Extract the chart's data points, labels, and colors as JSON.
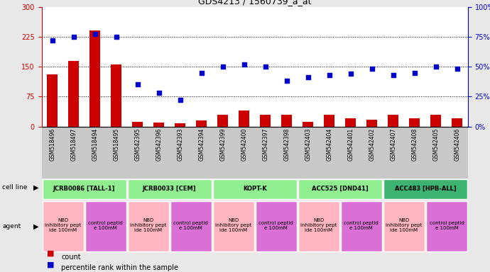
{
  "title": "GDS4213 / 1560739_a_at",
  "gsm_labels": [
    "GSM518496",
    "GSM518497",
    "GSM518494",
    "GSM518495",
    "GSM542395",
    "GSM542396",
    "GSM542393",
    "GSM542394",
    "GSM542399",
    "GSM542400",
    "GSM542397",
    "GSM542398",
    "GSM542403",
    "GSM542404",
    "GSM542401",
    "GSM542402",
    "GSM542407",
    "GSM542408",
    "GSM542405",
    "GSM542406"
  ],
  "bar_values": [
    130,
    165,
    240,
    155,
    12,
    10,
    8,
    15,
    30,
    40,
    30,
    30,
    12,
    30,
    20,
    17,
    30,
    20,
    30,
    20
  ],
  "scatter_values": [
    72,
    75,
    77,
    75,
    35,
    28,
    22,
    45,
    50,
    52,
    50,
    38,
    41,
    43,
    44,
    48,
    43,
    45,
    50,
    48
  ],
  "cell_line_groups": [
    {
      "label": "JCRB0086 [TALL-1]",
      "start": 0,
      "end": 3,
      "color": "#90EE90"
    },
    {
      "label": "JCRB0033 [CEM]",
      "start": 4,
      "end": 7,
      "color": "#90EE90"
    },
    {
      "label": "KOPT-K",
      "start": 8,
      "end": 11,
      "color": "#90EE90"
    },
    {
      "label": "ACC525 [DND41]",
      "start": 12,
      "end": 15,
      "color": "#90EE90"
    },
    {
      "label": "ACC483 [HPB-ALL]",
      "start": 16,
      "end": 19,
      "color": "#3CB371"
    }
  ],
  "agent_groups": [
    {
      "label": "NBD\ninhibitory pept\nide 100mM",
      "start": 0,
      "end": 1,
      "color": "#FFB6C1"
    },
    {
      "label": "control peptid\ne 100mM",
      "start": 2,
      "end": 3,
      "color": "#DA70D6"
    },
    {
      "label": "NBD\ninhibitory pept\nide 100mM",
      "start": 4,
      "end": 5,
      "color": "#FFB6C1"
    },
    {
      "label": "control peptid\ne 100mM",
      "start": 6,
      "end": 7,
      "color": "#DA70D6"
    },
    {
      "label": "NBD\ninhibitory pept\nide 100mM",
      "start": 8,
      "end": 9,
      "color": "#FFB6C1"
    },
    {
      "label": "control peptid\ne 100mM",
      "start": 10,
      "end": 11,
      "color": "#DA70D6"
    },
    {
      "label": "NBD\ninhibitory pept\nide 100mM",
      "start": 12,
      "end": 13,
      "color": "#FFB6C1"
    },
    {
      "label": "control peptid\ne 100mM",
      "start": 14,
      "end": 15,
      "color": "#DA70D6"
    },
    {
      "label": "NBD\ninhibitory pept\nide 100mM",
      "start": 16,
      "end": 17,
      "color": "#FFB6C1"
    },
    {
      "label": "control peptid\ne 100mM",
      "start": 18,
      "end": 19,
      "color": "#DA70D6"
    }
  ],
  "ylim_left": [
    0,
    300
  ],
  "ylim_right": [
    0,
    100
  ],
  "yticks_left": [
    0,
    75,
    150,
    225,
    300
  ],
  "yticks_right": [
    0,
    25,
    50,
    75,
    100
  ],
  "bar_color": "#CC0000",
  "scatter_color": "#0000CC",
  "background_color": "#E8E8E8",
  "plot_bg_color": "#FFFFFF"
}
